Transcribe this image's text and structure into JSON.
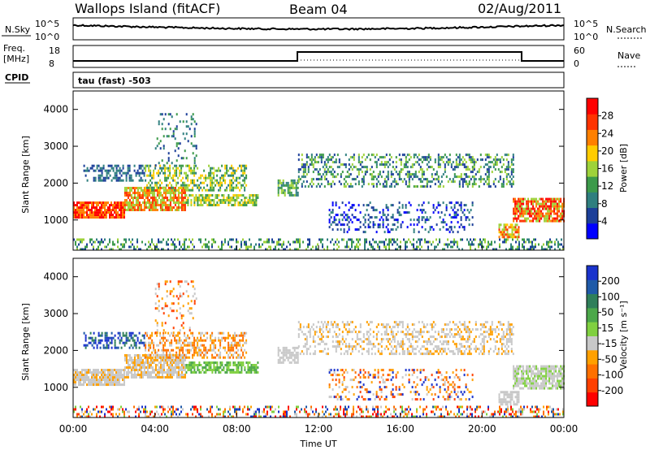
{
  "header": {
    "site": "Wallops Island (fitACF)",
    "beam": "Beam 04",
    "date": "02/Aug/2011"
  },
  "top_panels": {
    "nsky_label": "N.Sky",
    "nsky_ticks": [
      "10^5",
      "10^0"
    ],
    "nsearch_label": "N.Search",
    "nsearch_ticks": [
      "10^5",
      "10^0"
    ],
    "freq_label_line1": "Freq.",
    "freq_label_line2": "[MHz]",
    "freq_ticks": [
      "18",
      "8"
    ],
    "nave_label": "Nave",
    "nave_ticks": [
      "60",
      "0"
    ],
    "cpid_label": "CPID",
    "cpid_text": "tau (fast) -503"
  },
  "colors": {
    "power_scale": [
      "#0000ff",
      "#1c3f99",
      "#2f7f7f",
      "#3c9a4a",
      "#9ed23a",
      "#ffcc00",
      "#ff8000",
      "#ff3300",
      "#ff0000"
    ],
    "velocity_scale": [
      "#1a33cc",
      "#1f5aa8",
      "#2f7f5a",
      "#4ca84a",
      "#80d040",
      "#c8c8c8",
      "#ffa000",
      "#ff7000",
      "#ff4000",
      "#ff0000"
    ]
  },
  "chart_data": [
    {
      "type": "heatmap",
      "name_panel": "power",
      "ylabel": "Slant Range [km]",
      "yticks": [
        "4000",
        "3000",
        "2000",
        "1000"
      ],
      "ylim": [
        180,
        4500
      ],
      "xlim": [
        "00:00",
        "24:00"
      ],
      "colorbar_label": "Power [dB]",
      "colorbar_ticks": [
        "28",
        "24",
        "20",
        "16",
        "12",
        "8",
        "4"
      ],
      "colorbar_range": [
        0,
        30
      ]
    },
    {
      "type": "heatmap",
      "name_panel": "velocity",
      "ylabel": "Slant Range [km]",
      "yticks": [
        "4000",
        "3000",
        "2000",
        "1000"
      ],
      "ylim": [
        180,
        4500
      ],
      "xlabel": "Time UT",
      "xticks": [
        "00:00",
        "04:00",
        "08:00",
        "12:00",
        "16:00",
        "20:00",
        "00:00"
      ],
      "colorbar_label": "Velocity [m s⁻¹]",
      "colorbar_ticks": [
        "200",
        "100",
        "50",
        "15",
        "-15",
        "-50",
        "-100",
        "-200"
      ],
      "colorbar_range": [
        -250,
        250
      ]
    }
  ]
}
